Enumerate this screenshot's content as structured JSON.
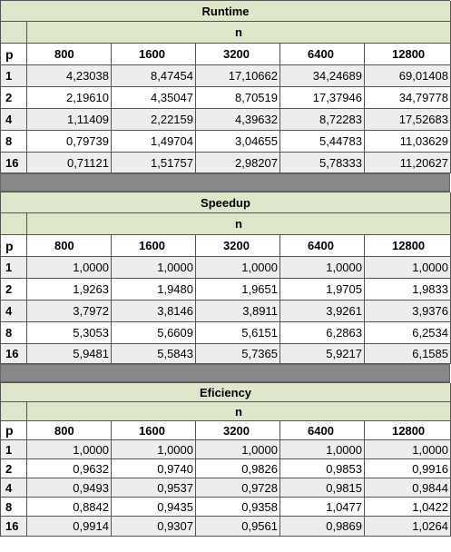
{
  "tables": [
    {
      "title": "Runtime",
      "n_label": "n",
      "p_label": "p",
      "columns": [
        "800",
        "1600",
        "3200",
        "6400",
        "12800"
      ],
      "rows": [
        {
          "p": "1",
          "values": [
            "4,23038",
            "8,47454",
            "17,10662",
            "34,24689",
            "69,01408"
          ]
        },
        {
          "p": "2",
          "values": [
            "2,19610",
            "4,35047",
            "8,70519",
            "17,37946",
            "34,79778"
          ]
        },
        {
          "p": "4",
          "values": [
            "1,11409",
            "2,22159",
            "4,39632",
            "8,72283",
            "17,52683"
          ]
        },
        {
          "p": "8",
          "values": [
            "0,79739",
            "1,49704",
            "3,04655",
            "5,44783",
            "11,03629"
          ]
        },
        {
          "p": "16",
          "values": [
            "0,71121",
            "1,51757",
            "2,98207",
            "5,78333",
            "11,20627"
          ]
        }
      ]
    },
    {
      "title": "Speedup",
      "n_label": "n",
      "p_label": "p",
      "columns": [
        "800",
        "1600",
        "3200",
        "6400",
        "12800"
      ],
      "rows": [
        {
          "p": "1",
          "values": [
            "1,0000",
            "1,0000",
            "1,0000",
            "1,0000",
            "1,0000"
          ]
        },
        {
          "p": "2",
          "values": [
            "1,9263",
            "1,9480",
            "1,9651",
            "1,9705",
            "1,9833"
          ]
        },
        {
          "p": "4",
          "values": [
            "3,7972",
            "3,8146",
            "3,8911",
            "3,9261",
            "3,9376"
          ]
        },
        {
          "p": "8",
          "values": [
            "5,3053",
            "5,6609",
            "5,6151",
            "6,2863",
            "6,2534"
          ]
        },
        {
          "p": "16",
          "values": [
            "5,9481",
            "5,5843",
            "5,7365",
            "5,9217",
            "6,1585"
          ]
        }
      ]
    },
    {
      "title": "Eficiency",
      "n_label": "n",
      "p_label": "p",
      "columns": [
        "800",
        "1600",
        "3200",
        "6400",
        "12800"
      ],
      "rows": [
        {
          "p": "1",
          "values": [
            "1,0000",
            "1,0000",
            "1,0000",
            "1,0000",
            "1,0000"
          ]
        },
        {
          "p": "2",
          "values": [
            "0,9632",
            "0,9740",
            "0,9826",
            "0,9853",
            "0,9916"
          ]
        },
        {
          "p": "4",
          "values": [
            "0,9493",
            "0,9537",
            "0,9728",
            "0,9815",
            "0,9844"
          ]
        },
        {
          "p": "8",
          "values": [
            "0,8842",
            "0,9435",
            "0,9358",
            "1,0477",
            "1,0422"
          ]
        },
        {
          "p": "16",
          "values": [
            "0,9914",
            "0,9307",
            "0,9561",
            "0,9869",
            "1,0264"
          ]
        }
      ]
    }
  ]
}
